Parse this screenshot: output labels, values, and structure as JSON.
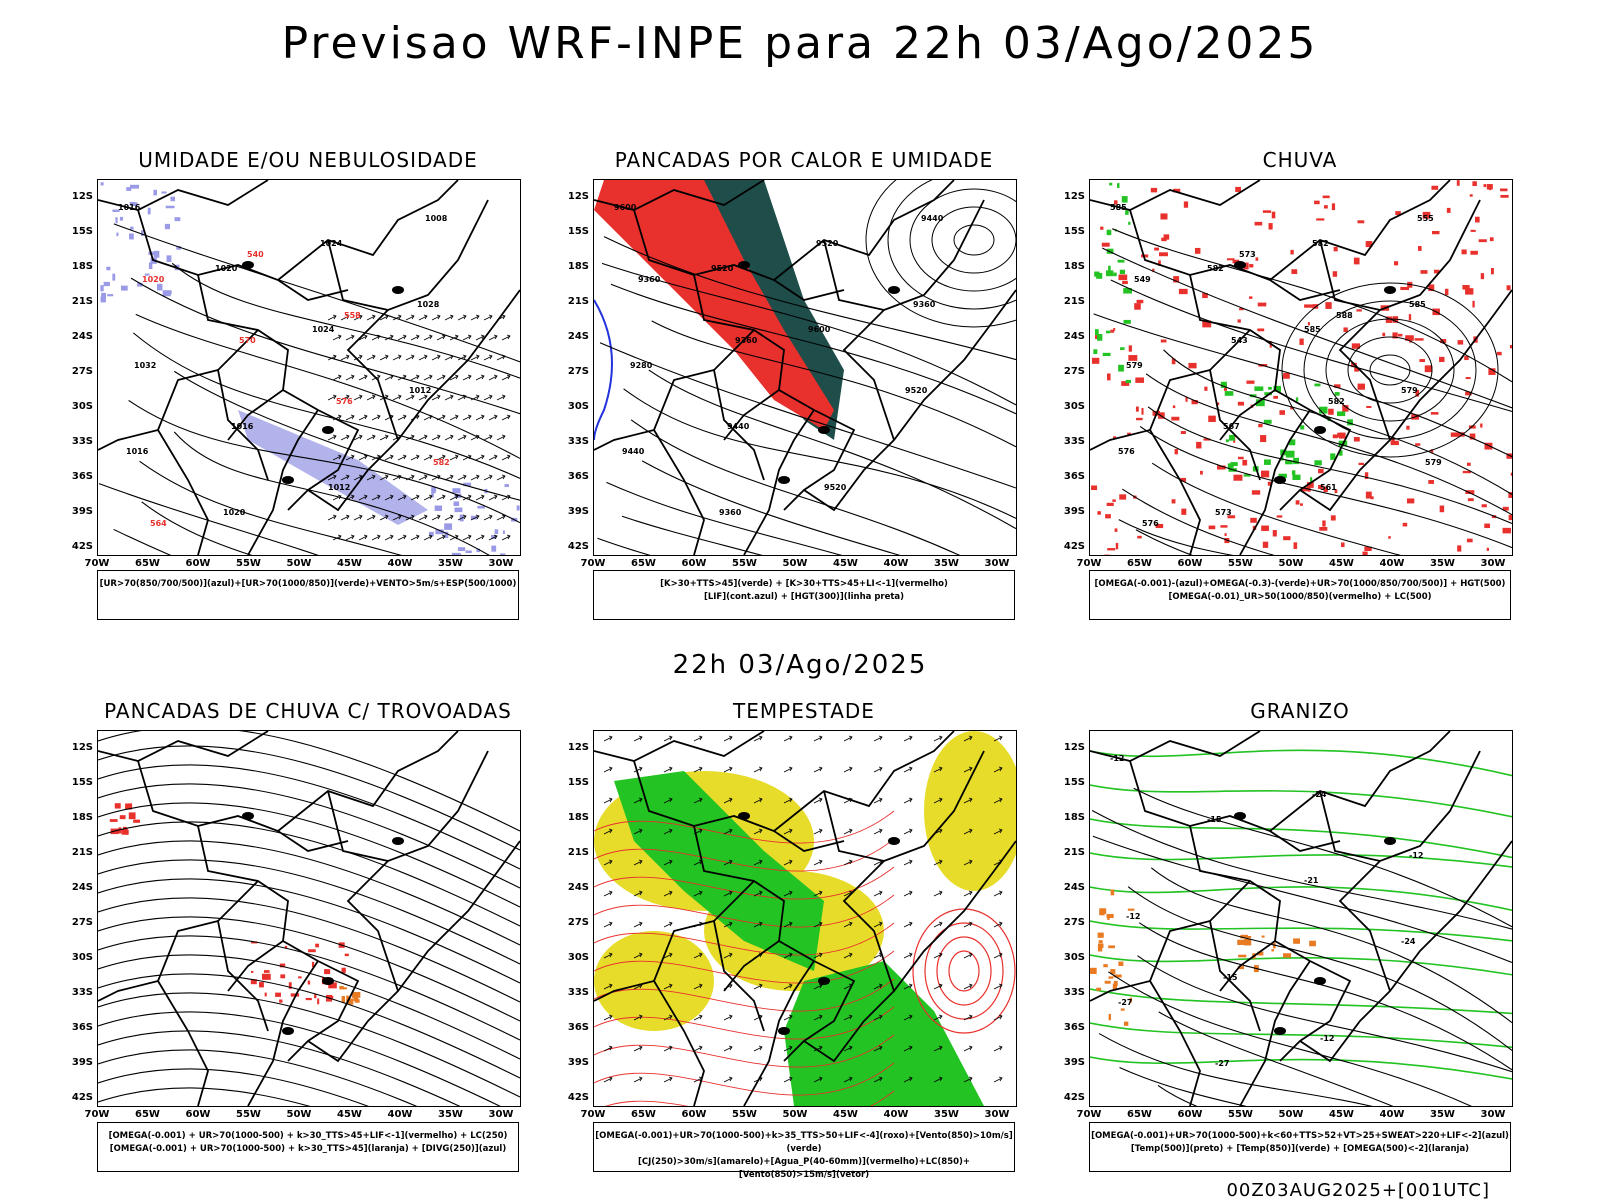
{
  "main_title": "Previsao WRF-INPE  para 22h 03/Ago/2025",
  "mid_title": "22h 03/Ago/2025",
  "footer": "00Z03AUG2025+[001UTC]",
  "lat_labels": [
    "12S",
    "15S",
    "18S",
    "21S",
    "24S",
    "27S",
    "30S",
    "33S",
    "36S",
    "39S",
    "42S"
  ],
  "lon_labels": [
    "70W",
    "65W",
    "60W",
    "55W",
    "50W",
    "45W",
    "40W",
    "35W",
    "30W"
  ],
  "colors": {
    "red": "#e8302c",
    "green": "#22c322",
    "blue": "#2233dd",
    "purple": "#9a9ae6",
    "darkteal": "#1f4d4a",
    "yellow": "#e7dc2a",
    "orange": "#e87a22"
  },
  "panels": [
    {
      "title": "UMIDADE E/OU NEBULOSIDADE",
      "legend": [
        "[UR>70(850/700/500)](azul)+[UR>70(1000/850)](verde)+VENTO>5m/s+ESP(500/1000)"
      ],
      "labels": [
        "1016",
        "1020",
        "1024",
        "1012",
        "1016",
        "1020",
        "1024",
        "1028",
        "1032",
        "1016",
        "1012",
        "1008",
        "1020",
        "570",
        "576",
        "582",
        "564",
        "540",
        "558"
      ]
    },
    {
      "title": "PANCADAS POR CALOR E UMIDADE",
      "legend": [
        "[K>30+TTS>45](verde) + [K>30+TTS>45+LI<-1](vermelho)",
        "[LIF](cont.azul) + [HGT(300)](linha preta)"
      ],
      "labels": [
        "9600",
        "9520",
        "9600",
        "9520",
        "9440",
        "9360",
        "9520",
        "9360",
        "9280",
        "9440",
        "9520",
        "9440",
        "9360",
        "9360"
      ]
    },
    {
      "title": "CHUVA",
      "legend": [
        "[OMEGA(-0.001)-(azul)+OMEGA(-0.3)-(verde)+UR>70(1000/850/700/500)] + HGT(500)",
        "[OMEGA(-0.01)_UR>50(1000/850)(vermelho) + LC(500)"
      ],
      "labels": [
        "585",
        "582",
        "585",
        "579",
        "576",
        "573",
        "582",
        "585",
        "579",
        "567",
        "561",
        "555",
        "549",
        "543",
        "582",
        "579",
        "576",
        "573",
        "588"
      ]
    },
    {
      "title": "PANCADAS DE CHUVA C/ TROVOADAS",
      "legend": [
        "[OMEGA(-0.001) + UR>70(1000-500) + k>30_TTS>45+LIF<-1](vermelho) + LC(250)",
        "[OMEGA(-0.001) + UR>70(1000-500) + k>30_TTS>45](laranja) + [DIVG(250)](azul)"
      ],
      "labels": []
    },
    {
      "title": "TEMPESTADE",
      "legend": [
        "[OMEGA(-0.001)+UR>70(1000-500)+k>35_TTS>50+LIF<-4](roxo)+[Vento(850)>10m/s](verde)",
        "[CJ(250)>30m/s](amarelo)+[Agua_P(40-60mm)](vermelho)+LC(850)+[Vento(850)>15m/s](vetor)"
      ],
      "labels": []
    },
    {
      "title": "GRANIZO",
      "legend": [
        "[OMEGA(-0.001)+UR>70(1000-500)+k<60+TTS>52+VT>25+SWEAT>220+LIF<-2](azul)",
        "[Temp(500)](preto) + [Temp(850)](verde) + [OMEGA(500)<-2](laranja)"
      ],
      "labels": [
        "-12",
        "-15",
        "-21",
        "-24",
        "-27",
        "-27",
        "-24",
        "-12",
        "-12",
        "-15",
        "-12"
      ]
    }
  ]
}
